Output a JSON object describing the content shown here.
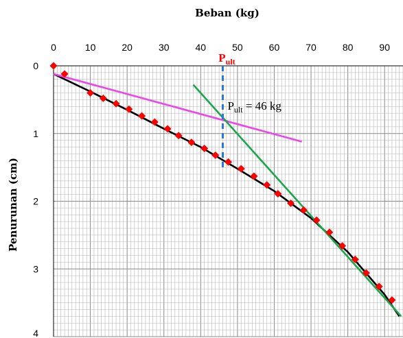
{
  "chart_data": {
    "type": "scatter",
    "title": "",
    "xlabel": "Beban (kg)",
    "ylabel": "Penurunan (cm)",
    "xlim": [
      0,
      95
    ],
    "ylim": [
      0,
      4
    ],
    "y_inverted": true,
    "x_axis_position": "top",
    "x_ticks": [
      0,
      10,
      20,
      30,
      40,
      50,
      60,
      70,
      80,
      90
    ],
    "y_ticks": [
      0,
      1,
      2,
      3,
      4
    ],
    "grid": true,
    "grid_minor_x_step": 1,
    "grid_minor_y_step": 0.1,
    "series": [
      {
        "kind": "scatter",
        "marker": "diamond",
        "color": "#ff0000",
        "x": [
          0,
          3,
          10,
          13.5,
          17,
          20.5,
          24,
          27.5,
          31,
          34,
          37.5,
          41,
          44,
          47.5,
          51,
          54.5,
          58,
          61,
          64.5,
          68,
          71.5,
          75,
          78.5,
          82,
          85,
          88.5,
          92
        ],
        "y": [
          0,
          0.12,
          0.4,
          0.48,
          0.56,
          0.64,
          0.74,
          0.83,
          0.93,
          1.03,
          1.13,
          1.22,
          1.32,
          1.42,
          1.52,
          1.63,
          1.76,
          1.89,
          2.03,
          2.13,
          2.28,
          2.46,
          2.66,
          2.86,
          3.06,
          3.26,
          3.46
        ]
      },
      {
        "kind": "line",
        "color": "#000000",
        "x": [
          0,
          10,
          20,
          30,
          40,
          50,
          60,
          70,
          80,
          90,
          94
        ],
        "y": [
          0.12,
          0.38,
          0.65,
          0.93,
          1.2,
          1.52,
          1.85,
          2.25,
          2.75,
          3.38,
          3.7
        ]
      },
      {
        "kind": "line",
        "color": "#ee44ee",
        "x": [
          0,
          67.5
        ],
        "y": [
          0.12,
          1.12
        ]
      },
      {
        "kind": "line",
        "color": "#1aa64a",
        "x": [
          38,
          94.5
        ],
        "y": [
          0.28,
          3.7
        ]
      },
      {
        "kind": "dashed-line",
        "color": "#2e75d6",
        "x": [
          46,
          46
        ],
        "y": [
          0,
          1.52
        ]
      }
    ],
    "annotations": {
      "pult_label": "Pult",
      "pult_value_label": "Pult = 46 kg",
      "pult_value": 46
    },
    "colors": {
      "grid": "#b5b5b5",
      "axis": "#000000"
    }
  }
}
